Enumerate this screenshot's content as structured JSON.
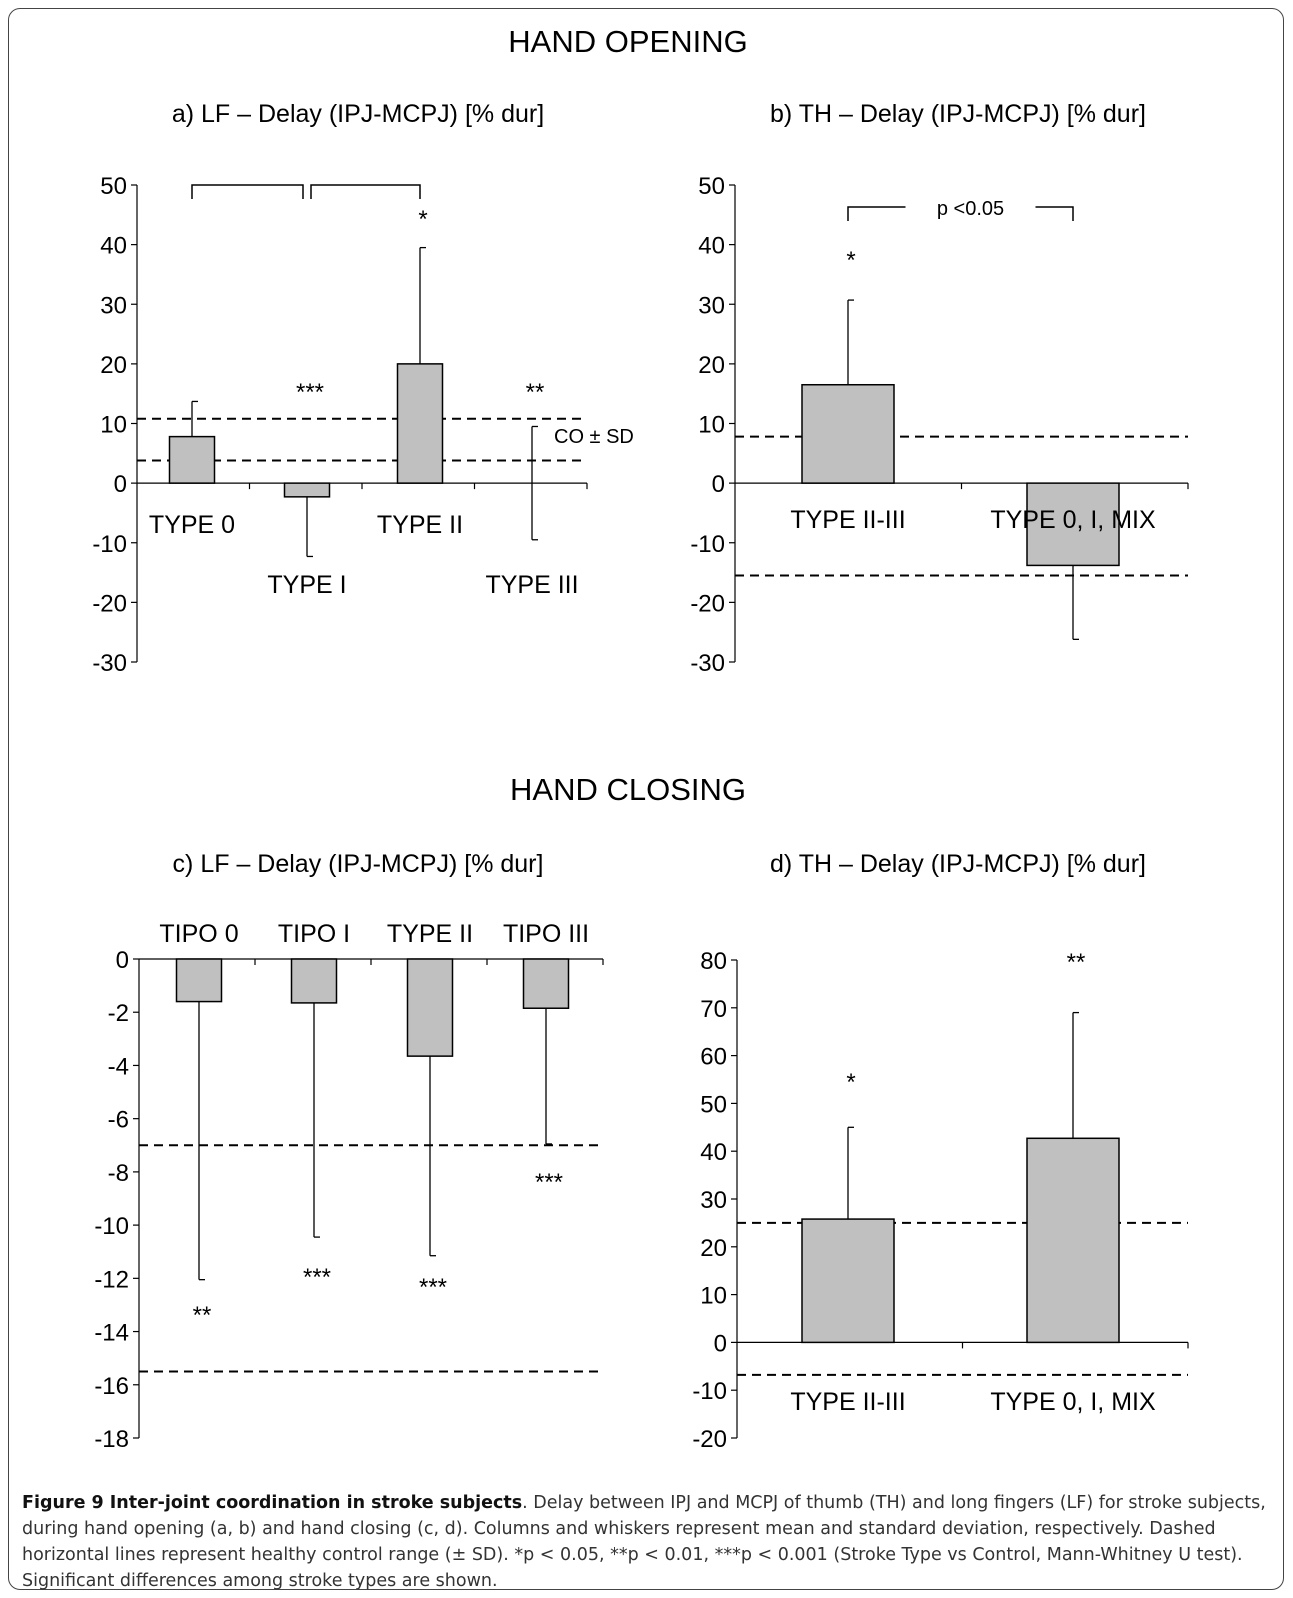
{
  "figure": {
    "section_titles": [
      "HAND OPENING",
      "HAND CLOSING"
    ],
    "caption": {
      "label": "Figure 9 Inter-joint coordination in stroke subjects",
      "text": ". Delay between IPJ and MCPJ of thumb (TH) and long fingers (LF) for stroke subjects, during hand opening (a, b) and hand closing (c, d). Columns and whiskers represent mean and standard deviation, respectively. Dashed horizontal lines represent healthy control range (± SD). *p < 0.05, **p < 0.01, ***p < 0.001 (Stroke Type vs Control, Mann-Whitney U test). Significant differences among stroke types are shown."
    }
  },
  "chart_data": [
    {
      "type": "bar",
      "title": "a) LF – Delay (IPJ-MCPJ) [% dur]",
      "categories": [
        "TYPE 0",
        "TYPE I",
        "TYPE II",
        "TYPE III"
      ],
      "values": [
        7.8,
        -2.3,
        20,
        0
      ],
      "error_dir": [
        "up",
        "down",
        "up",
        "both"
      ],
      "error": [
        5.9,
        10,
        19.5,
        9.5
      ],
      "significance": [
        "",
        "***",
        "*",
        "**"
      ],
      "ylim": [
        -30,
        50
      ],
      "yticks": [
        50,
        40,
        30,
        20,
        10,
        0,
        -10,
        -20,
        -30
      ],
      "control_lines": [
        10.8,
        3.8
      ],
      "control_label": "CO ± SD",
      "comparisons": [
        [
          0,
          1
        ],
        [
          1,
          2
        ]
      ],
      "comparison_label": ""
    },
    {
      "type": "bar",
      "title": "b) TH – Delay (IPJ-MCPJ) [% dur]",
      "categories": [
        "TYPE II-III",
        "TYPE 0, I, MIX"
      ],
      "values": [
        16.5,
        -13.8
      ],
      "error_dir": [
        "up",
        "down"
      ],
      "error": [
        14.2,
        12.4
      ],
      "significance": [
        "*",
        ""
      ],
      "ylim": [
        -30,
        50
      ],
      "yticks": [
        50,
        40,
        30,
        20,
        10,
        0,
        -10,
        -20,
        -30
      ],
      "control_lines": [
        7.8,
        -15.5
      ],
      "control_label": "",
      "comparisons": [
        [
          0,
          1
        ]
      ],
      "comparison_label": "p <0.05"
    },
    {
      "type": "bar",
      "title": "c) LF – Delay (IPJ-MCPJ) [% dur]",
      "categories": [
        "TIPO 0",
        "TIPO I",
        "TYPE II",
        "TIPO III"
      ],
      "values": [
        -1.6,
        -1.65,
        -3.65,
        -1.85
      ],
      "error_dir": [
        "down",
        "down",
        "down",
        "down"
      ],
      "error": [
        10.45,
        8.8,
        7.5,
        5.1
      ],
      "significance": [
        "**",
        "***",
        "***",
        "***"
      ],
      "ylim": [
        -18,
        0
      ],
      "yticks": [
        0,
        -2,
        -4,
        -6,
        -8,
        -10,
        -12,
        -14,
        -16,
        -18
      ],
      "control_lines": [
        -7.0,
        -15.5
      ],
      "control_label": "",
      "comparisons": [],
      "comparison_label": ""
    },
    {
      "type": "bar",
      "title": "d) TH – Delay (IPJ-MCPJ) [% dur]",
      "categories": [
        "TYPE II-III",
        "TYPE 0, I, MIX"
      ],
      "values": [
        25.8,
        42.7
      ],
      "error_dir": [
        "up",
        "up"
      ],
      "error": [
        19.2,
        26.3
      ],
      "significance": [
        "*",
        "**"
      ],
      "ylim": [
        -20,
        80
      ],
      "yticks": [
        80,
        70,
        60,
        50,
        40,
        30,
        20,
        10,
        0,
        -10,
        -20
      ],
      "control_lines": [
        25.0,
        -6.8
      ],
      "control_label": "",
      "comparisons": [],
      "comparison_label": ""
    }
  ]
}
